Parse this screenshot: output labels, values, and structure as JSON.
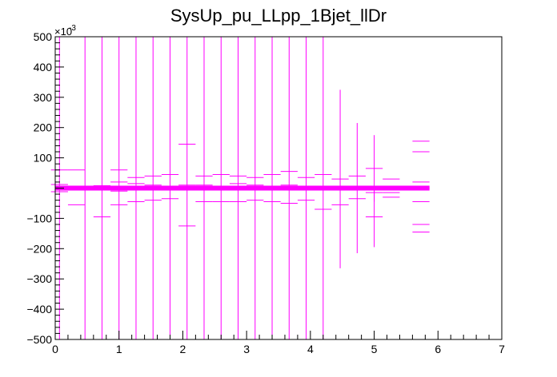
{
  "chart_data": {
    "type": "scatter",
    "title": "SysUp_pu_LLpp_1Bjet_llDr",
    "xlabel": "",
    "ylabel": "",
    "xlim": [
      0,
      7
    ],
    "ylim": [
      -0.5,
      0.5
    ],
    "y_multiplier_label": "×10",
    "y_multiplier_exponent": "-3",
    "x_ticks": [
      "0",
      "1",
      "2",
      "3",
      "4",
      "5",
      "6",
      "7"
    ],
    "y_ticks": [
      "−500",
      "−400",
      "−300",
      "−200",
      "−100",
      "100",
      "200",
      "300",
      "400",
      "500"
    ],
    "grid": false,
    "legend": "none",
    "marker_color": "#ff00ff",
    "bin_half_width": 0.1333,
    "full_range_error_x": [
      0.0667,
      0.4667,
      0.7333,
      1.0,
      1.2667,
      1.5333,
      1.8,
      2.0667,
      2.3333,
      2.6,
      2.8667,
      3.1333,
      3.4,
      3.6667,
      3.9333,
      4.2
    ],
    "points": [
      {
        "x": 0.0667,
        "y": 0.06
      },
      {
        "x": 0.0667,
        "y": 0.012
      },
      {
        "x": 0.0667,
        "y": -0.012
      },
      {
        "x": 0.3333,
        "y": 0.06
      },
      {
        "x": 0.3333,
        "y": -0.055
      },
      {
        "x": 0.3333,
        "y": 0.005
      },
      {
        "x": 0.7333,
        "y": -0.095
      },
      {
        "x": 0.7333,
        "y": 0.008
      },
      {
        "x": 1.0,
        "y": 0.06
      },
      {
        "x": 1.0,
        "y": 0.02
      },
      {
        "x": 1.0,
        "y": -0.01
      },
      {
        "x": 1.0,
        "y": -0.055
      },
      {
        "x": 1.2667,
        "y": 0.035
      },
      {
        "x": 1.2667,
        "y": 0.015
      },
      {
        "x": 1.2667,
        "y": -0.045
      },
      {
        "x": 1.5333,
        "y": 0.04
      },
      {
        "x": 1.5333,
        "y": 0.01
      },
      {
        "x": 1.5333,
        "y": -0.04
      },
      {
        "x": 1.8,
        "y": 0.045
      },
      {
        "x": 1.8,
        "y": 0.0
      },
      {
        "x": 1.8,
        "y": -0.035
      },
      {
        "x": 2.0667,
        "y": 0.145
      },
      {
        "x": 2.0667,
        "y": 0.01
      },
      {
        "x": 2.0667,
        "y": -0.125
      },
      {
        "x": 2.3333,
        "y": 0.04
      },
      {
        "x": 2.3333,
        "y": 0.01
      },
      {
        "x": 2.3333,
        "y": -0.045
      },
      {
        "x": 2.6,
        "y": 0.045
      },
      {
        "x": 2.6,
        "y": 0.005
      },
      {
        "x": 2.6,
        "y": -0.045
      },
      {
        "x": 2.8667,
        "y": 0.04
      },
      {
        "x": 2.8667,
        "y": 0.015
      },
      {
        "x": 2.8667,
        "y": -0.045
      },
      {
        "x": 3.1333,
        "y": 0.035
      },
      {
        "x": 3.1333,
        "y": 0.01
      },
      {
        "x": 3.1333,
        "y": -0.04
      },
      {
        "x": 3.4,
        "y": 0.045
      },
      {
        "x": 3.4,
        "y": 0.0
      },
      {
        "x": 3.4,
        "y": -0.045
      },
      {
        "x": 3.6667,
        "y": 0.055
      },
      {
        "x": 3.6667,
        "y": 0.01
      },
      {
        "x": 3.6667,
        "y": -0.05
      },
      {
        "x": 3.9333,
        "y": 0.035
      },
      {
        "x": 3.9333,
        "y": 0.005
      },
      {
        "x": 3.9333,
        "y": -0.04
      },
      {
        "x": 4.2,
        "y": 0.045
      },
      {
        "x": 4.2,
        "y": 0.0
      },
      {
        "x": 4.2,
        "y": -0.07
      },
      {
        "x": 4.4667,
        "y": 0.03,
        "err": 0.295
      },
      {
        "x": 4.4667,
        "y": -0.055
      },
      {
        "x": 4.4667,
        "y": 0.005
      },
      {
        "x": 4.7333,
        "y": 0.0,
        "err": 0.215
      },
      {
        "x": 4.7333,
        "y": 0.04
      },
      {
        "x": 4.7333,
        "y": -0.035
      },
      {
        "x": 5.0,
        "y": 0.065,
        "err": 0.11
      },
      {
        "x": 5.0,
        "y": -0.095,
        "err": 0.1
      },
      {
        "x": 5.0,
        "y": 0.005
      },
      {
        "x": 5.0,
        "y": -0.015
      },
      {
        "x": 5.2667,
        "y": 0.03
      },
      {
        "x": 5.2667,
        "y": 0.005
      },
      {
        "x": 5.2667,
        "y": -0.015
      },
      {
        "x": 5.2667,
        "y": -0.03
      },
      {
        "x": 5.7333,
        "y": 0.155
      },
      {
        "x": 5.7333,
        "y": 0.12
      },
      {
        "x": 5.7333,
        "y": 0.02
      },
      {
        "x": 5.7333,
        "y": 0.0
      },
      {
        "x": 5.7333,
        "y": -0.045
      },
      {
        "x": 5.7333,
        "y": -0.12
      },
      {
        "x": 5.7333,
        "y": -0.145
      }
    ],
    "band": {
      "x0": 0.0,
      "x1": 5.8667,
      "y0": -0.008,
      "y1": 0.008
    }
  }
}
